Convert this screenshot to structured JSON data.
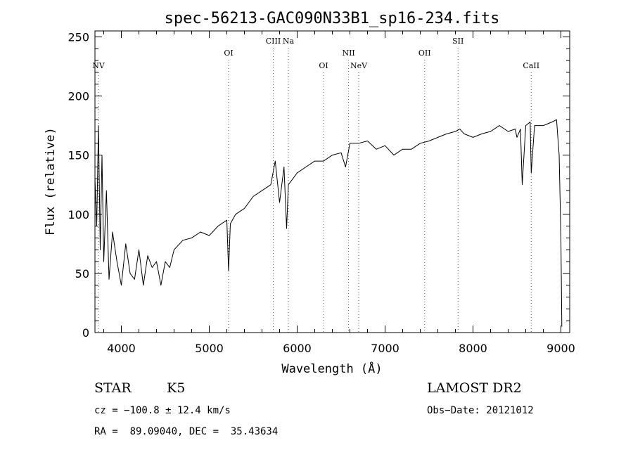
{
  "chart_data": {
    "type": "line",
    "title": "spec-56213-GAC090N33B1_sp16-234.fits",
    "xlabel": "Wavelength (Å)",
    "ylabel": "Flux (relative)",
    "xlim": [
      3700,
      9100
    ],
    "ylim": [
      0,
      255
    ],
    "xticks": [
      4000,
      5000,
      6000,
      7000,
      8000,
      9000
    ],
    "yticks": [
      0,
      50,
      100,
      150,
      200,
      250
    ],
    "grid": false,
    "series": [
      {
        "x": [
          3700,
          3720,
          3740,
          3760,
          3780,
          3800,
          3830,
          3860,
          3900,
          3950,
          4000,
          4050,
          4100,
          4150,
          4200,
          4250,
          4300,
          4350,
          4400,
          4450,
          4500,
          4550,
          4600,
          4700,
          4800,
          4900,
          5000,
          5100,
          5200,
          5220,
          5240,
          5300,
          5400,
          5500,
          5600,
          5700,
          5750,
          5800,
          5850,
          5880,
          5900,
          5950,
          6000,
          6100,
          6200,
          6300,
          6400,
          6500,
          6550,
          6600,
          6700,
          6800,
          6900,
          7000,
          7100,
          7200,
          7300,
          7400,
          7500,
          7600,
          7700,
          7800,
          7850,
          7900,
          8000,
          8100,
          8200,
          8300,
          8400,
          8480,
          8500,
          8540,
          8560,
          8600,
          8650,
          8662,
          8700,
          8800,
          8900,
          8950,
          8980,
          9000,
          9010
        ],
        "y": [
          130,
          90,
          175,
          70,
          150,
          60,
          120,
          45,
          85,
          60,
          40,
          75,
          50,
          45,
          70,
          40,
          65,
          55,
          60,
          40,
          60,
          55,
          70,
          78,
          80,
          85,
          82,
          90,
          95,
          52,
          92,
          100,
          105,
          115,
          120,
          125,
          145,
          110,
          140,
          88,
          125,
          130,
          135,
          140,
          145,
          145,
          150,
          152,
          140,
          160,
          160,
          162,
          155,
          158,
          150,
          155,
          155,
          160,
          162,
          165,
          168,
          170,
          172,
          168,
          165,
          168,
          170,
          175,
          170,
          172,
          165,
          172,
          125,
          175,
          178,
          135,
          175,
          175,
          178,
          180,
          150,
          80,
          5
        ]
      }
    ],
    "annotations": [
      {
        "label": "NV",
        "x": 3740,
        "row": 3
      },
      {
        "label": "OI",
        "x": 5220,
        "row": 2
      },
      {
        "label": "CIII",
        "x": 5728,
        "row": 1
      },
      {
        "label": "Na",
        "x": 5900,
        "row": 1
      },
      {
        "label": "OI",
        "x": 6300,
        "row": 3
      },
      {
        "label": "NII",
        "x": 6585,
        "row": 2
      },
      {
        "label": "NeV",
        "x": 6700,
        "row": 3
      },
      {
        "label": "OII",
        "x": 7450,
        "row": 2
      },
      {
        "label": "SII",
        "x": 7830,
        "row": 1
      },
      {
        "label": "CaII",
        "x": 8662,
        "row": 3
      }
    ]
  },
  "info": {
    "obj_class": "STAR",
    "subclass": "K5",
    "cz": "cz = −100.8 ± 12.4 km/s",
    "radec": "RA =  89.09040, DEC =  35.43634",
    "survey": "LAMOST DR2",
    "obs_date": "Obs−Date: 20121012"
  }
}
